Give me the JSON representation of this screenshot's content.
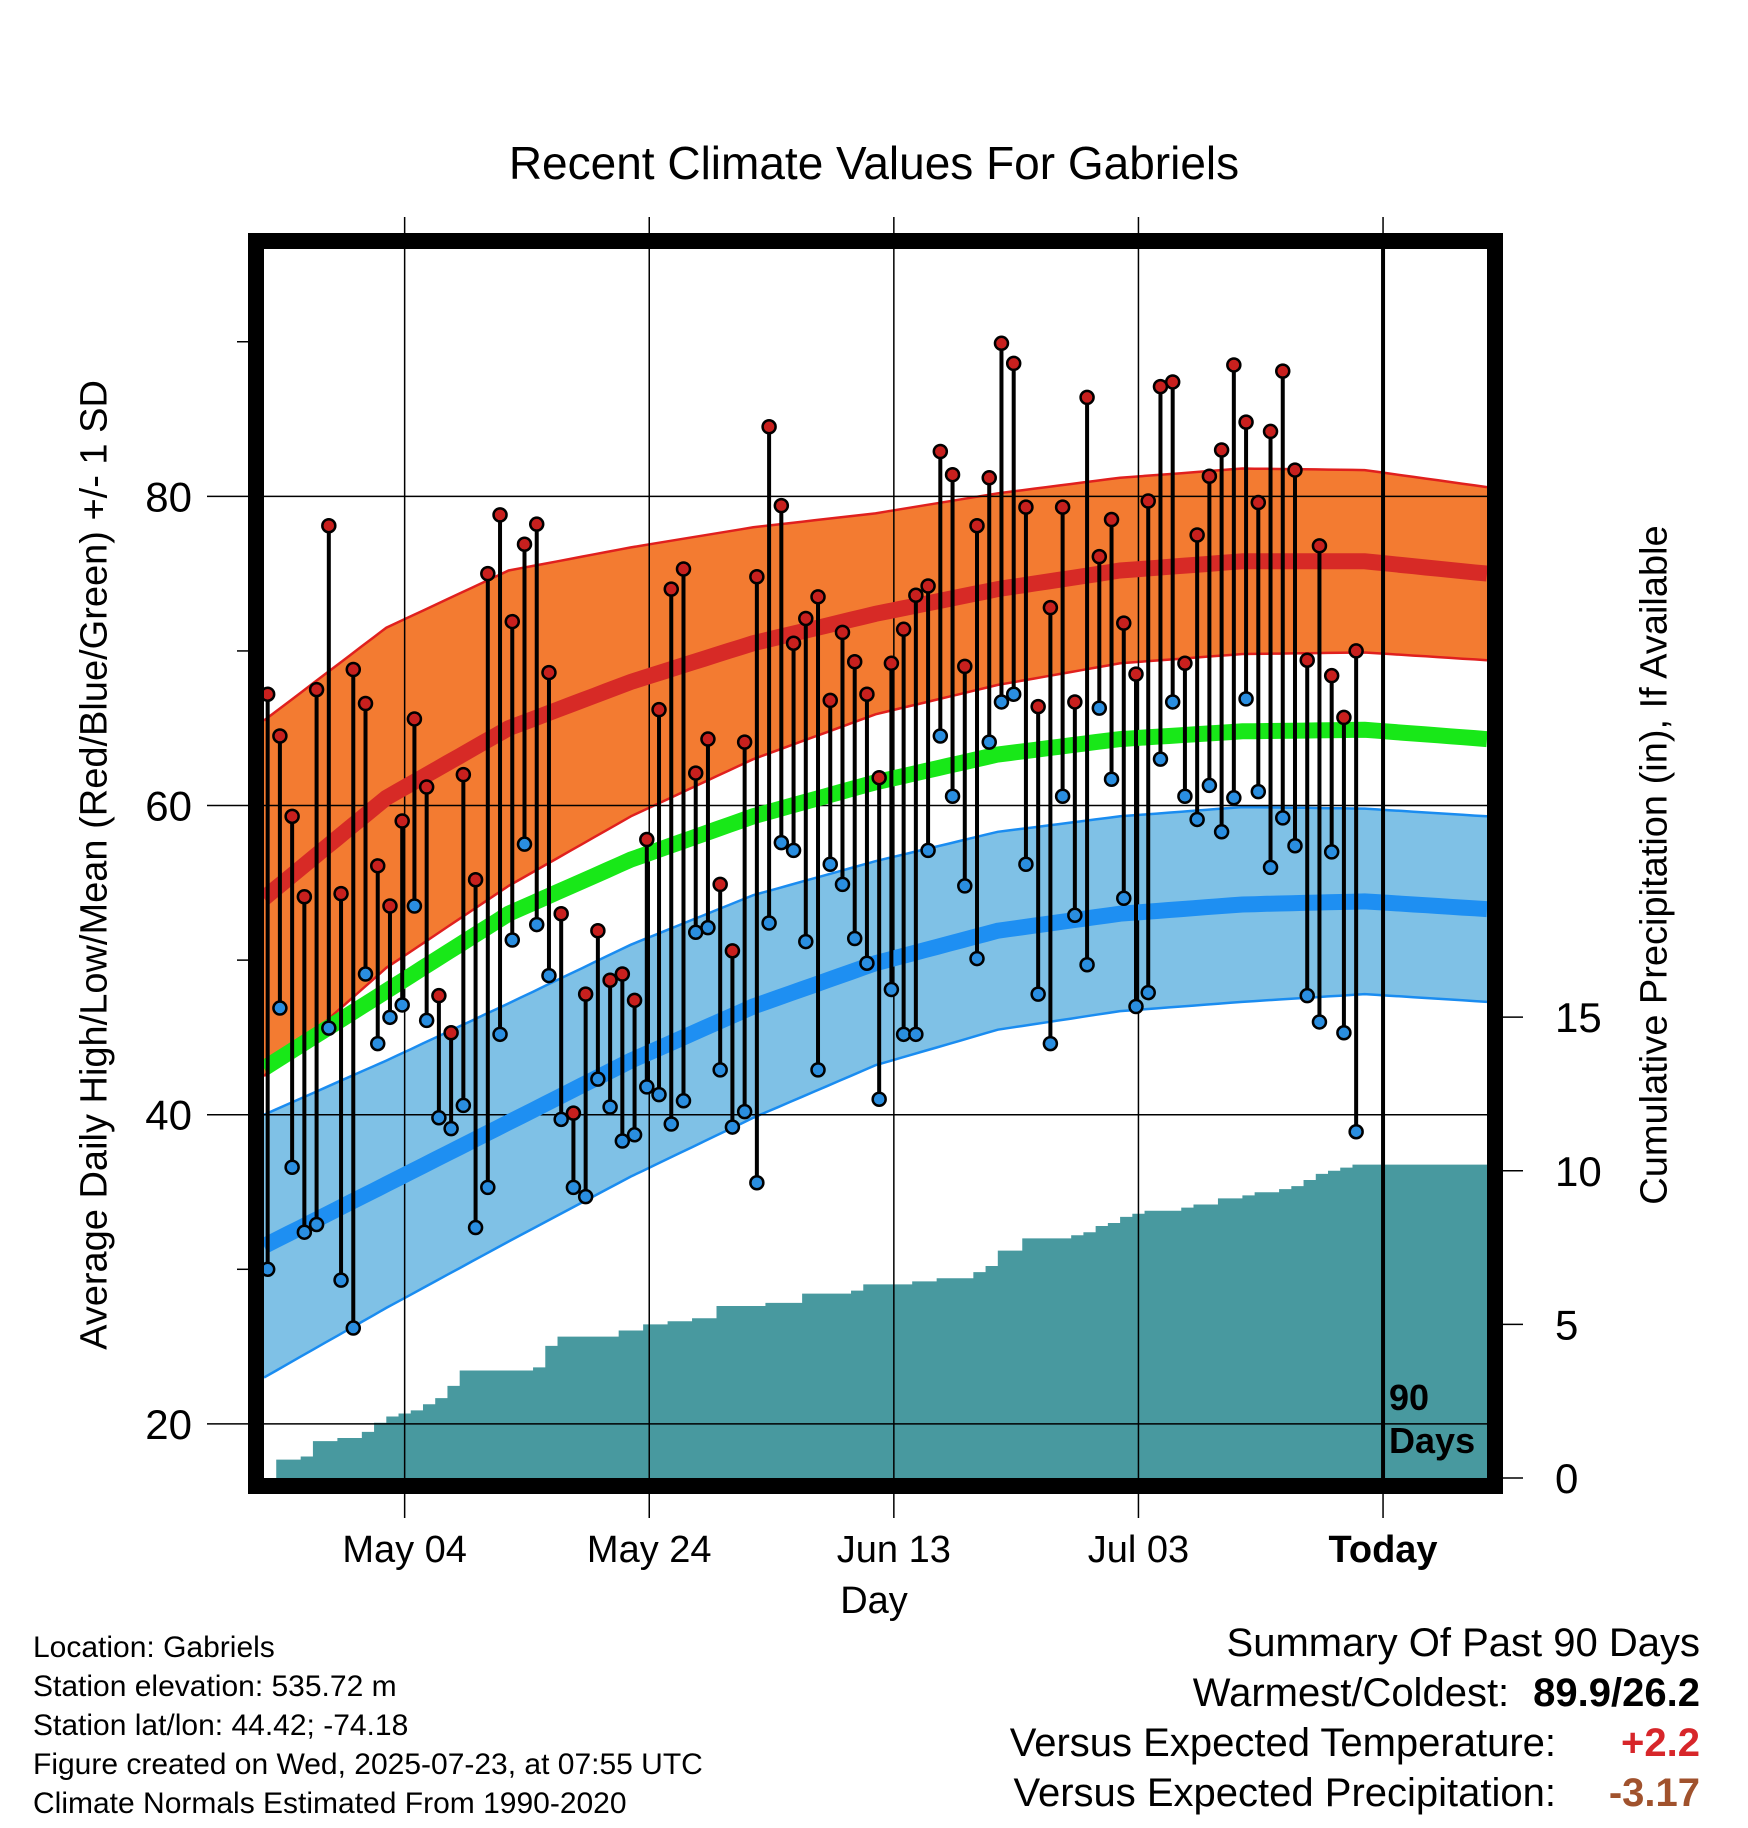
{
  "chart_data": {
    "type": "line",
    "title": "Recent Climate Values For Gabriels",
    "xlabel": "Day",
    "ylabel": "Average Daily High/Low/Mean (Red/Blue/Green) +/- 1 SD",
    "y2label": "Cumulative Precipitation (in), If Available",
    "ylim": [
      16.5,
      96
    ],
    "y2lim": [
      0,
      40
    ],
    "xlim": [
      0,
      100
    ],
    "y_ticks": [
      20,
      40,
      60,
      80
    ],
    "y2_ticks": [
      0,
      5,
      10,
      15
    ],
    "x_ticks": [
      {
        "day": 11.5,
        "label": "May 04",
        "bold": false
      },
      {
        "day": 31.5,
        "label": "May 24",
        "bold": false
      },
      {
        "day": 51.5,
        "label": "Jun 13",
        "bold": false
      },
      {
        "day": 71.5,
        "label": "Jul 03",
        "bold": false
      },
      {
        "day": 91.5,
        "label": "Today",
        "bold": true
      }
    ],
    "today_marker": {
      "day": 91.5,
      "label_line1": "90",
      "label_line2": "Days"
    },
    "colors": {
      "high_band": "#f37b31",
      "high_line": "#d72a26",
      "high_edge": "#e0201e",
      "mean_line": "#18e818",
      "low_band": "#7fc1e6",
      "low_line": "#1e8ff2",
      "low_edge": "#1a8cf0",
      "precip": "#48999f",
      "high_dot": "#c8201e",
      "low_dot": "#2a8ee0"
    },
    "normals": {
      "day": [
        0,
        10,
        20,
        30,
        40,
        50,
        60,
        70,
        80,
        90,
        100
      ],
      "high_mean": [
        54,
        60.5,
        65,
        68,
        70.5,
        72.4,
        74,
        75.2,
        75.8,
        75.8,
        75
      ],
      "high_sd": [
        11.5,
        11,
        10.2,
        8.7,
        7.5,
        6.5,
        6.2,
        6,
        6,
        5.9,
        5.6
      ],
      "low_mean": [
        31.5,
        35.5,
        39.5,
        43.5,
        47,
        49.8,
        51.9,
        53,
        53.6,
        53.8,
        53.3
      ],
      "low_sd": [
        8.5,
        8,
        7.7,
        7.5,
        7.2,
        6.6,
        6.4,
        6.3,
        6.3,
        6,
        6
      ],
      "mean": [
        43,
        48,
        53,
        56.5,
        59.3,
        61.5,
        63.3,
        64.3,
        64.8,
        64.9,
        64.3
      ]
    },
    "series": [
      {
        "name": "High",
        "values": [
          67.2,
          64.5,
          59.3,
          54.1,
          67.5,
          78.1,
          54.3,
          68.8,
          66.6,
          56.1,
          53.5,
          59,
          65.6,
          61.2,
          47.7,
          45.3,
          62,
          55.2,
          75,
          78.8,
          71.9,
          76.9,
          78.2,
          68.6,
          53,
          40.1,
          47.8,
          51.9,
          48.7,
          49.1,
          47.4,
          57.8,
          66.2,
          74,
          75.3,
          62.1,
          64.3,
          54.9,
          50.6,
          64.1,
          74.8,
          84.5,
          79.4,
          70.5,
          72.1,
          73.5,
          66.8,
          71.2,
          69.3,
          67.2,
          61.8,
          69.2,
          71.4,
          73.6,
          74.2,
          82.9,
          81.4,
          69,
          78.1,
          81.2,
          89.9,
          88.6,
          79.3,
          66.4,
          72.8,
          79.3,
          66.7,
          86.4,
          76.1,
          78.5,
          71.8,
          68.5,
          79.7,
          87.1,
          87.4,
          69.2,
          77.5,
          81.3,
          83,
          88.5,
          84.8,
          79.6,
          84.2,
          88.1,
          81.7,
          69.4,
          76.8,
          68.4,
          65.7,
          70
        ]
      },
      {
        "name": "Low",
        "values": [
          30,
          46.9,
          36.6,
          32.4,
          32.9,
          45.6,
          29.3,
          26.2,
          49.1,
          44.6,
          46.3,
          47.1,
          53.5,
          46.1,
          39.8,
          39.1,
          40.6,
          32.7,
          35.3,
          45.2,
          51.3,
          57.5,
          52.3,
          49,
          39.7,
          35.3,
          34.7,
          42.3,
          40.5,
          38.3,
          38.7,
          41.8,
          41.3,
          39.4,
          40.9,
          51.8,
          52.1,
          42.9,
          39.2,
          40.2,
          35.6,
          52.4,
          57.6,
          57.1,
          51.2,
          42.9,
          56.2,
          54.9,
          51.4,
          49.8,
          41,
          48.1,
          45.2,
          45.2,
          57.1,
          64.5,
          60.6,
          54.8,
          50.1,
          64.1,
          66.7,
          67.2,
          56.2,
          47.8,
          44.6,
          60.6,
          52.9,
          49.7,
          66.3,
          61.7,
          54,
          47,
          47.9,
          63,
          66.7,
          60.6,
          59.1,
          61.3,
          58.3,
          60.5,
          66.9,
          60.9,
          56,
          59.2,
          57.4,
          47.7,
          46,
          57,
          45.3,
          38.9
        ]
      },
      {
        "name": "Cumulative Precipitation",
        "y_axis": "right",
        "values": [
          0,
          0.6,
          0.6,
          0.7,
          1.2,
          1.2,
          1.3,
          1.3,
          1.5,
          1.8,
          2,
          2.1,
          2.2,
          2.4,
          2.6,
          3,
          3.5,
          3.5,
          3.5,
          3.5,
          3.5,
          3.5,
          3.6,
          4.3,
          4.6,
          4.6,
          4.6,
          4.6,
          4.6,
          4.8,
          4.8,
          5,
          5,
          5.1,
          5.1,
          5.2,
          5.2,
          5.6,
          5.6,
          5.6,
          5.6,
          5.7,
          5.7,
          5.7,
          6,
          6,
          6,
          6,
          6.1,
          6.3,
          6.3,
          6.3,
          6.3,
          6.4,
          6.4,
          6.5,
          6.5,
          6.5,
          6.7,
          6.9,
          7.4,
          7.4,
          7.8,
          7.8,
          7.8,
          7.8,
          7.9,
          8,
          8.2,
          8.3,
          8.5,
          8.6,
          8.7,
          8.7,
          8.7,
          8.8,
          8.9,
          8.9,
          9.1,
          9.1,
          9.2,
          9.3,
          9.3,
          9.4,
          9.5,
          9.7,
          9.9,
          10,
          10.1,
          10.2,
          10.2,
          10.2,
          10.2,
          10.2,
          10.2,
          10.2,
          10.2,
          10.2,
          10.2,
          10.2
        ]
      }
    ]
  },
  "info": {
    "location": "Location: Gabriels",
    "elevation": "Station elevation: 535.72 m",
    "latlon": "Station lat/lon: 44.42; -74.18",
    "created": "Figure created on Wed, 2025-07-23, at 07:55 UTC",
    "normals": "Climate Normals Estimated From 1990-2020"
  },
  "summary": {
    "heading": "Summary Of Past 90 Days",
    "warmest_label": "Warmest/Coldest:",
    "warmest_value": "89.9/26.2",
    "temp_label": "Versus Expected Temperature:",
    "temp_value": "+2.2",
    "temp_color": "#d7262a",
    "precip_label": "Versus Expected Precipitation:",
    "precip_value": "-3.17",
    "precip_color": "#a0522d"
  }
}
